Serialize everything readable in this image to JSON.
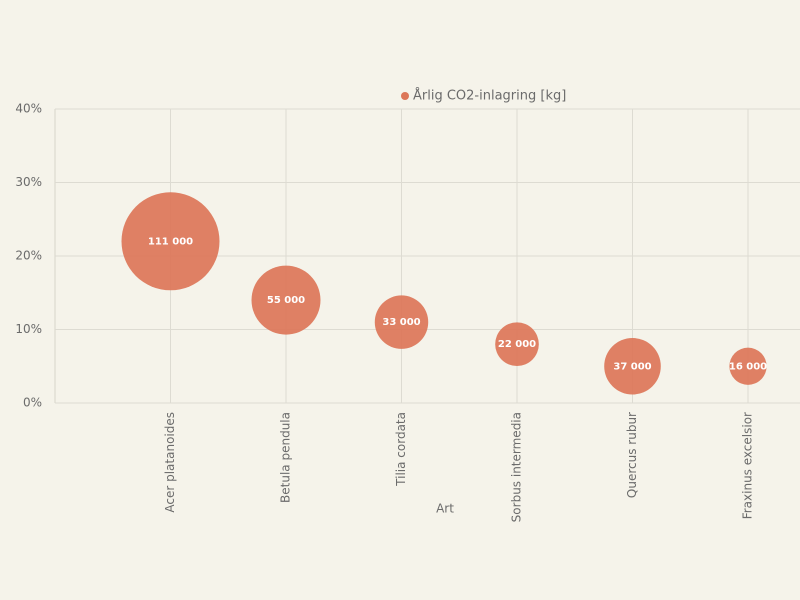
{
  "chart_data": {
    "type": "bubble",
    "x_label": "Art",
    "categories": [
      "Acer platanoides",
      "Betula pendula",
      "Tilia cordata",
      "Sorbus intermedia",
      "Quercus rubur",
      "Fraxinus excelsior"
    ],
    "series": [
      {
        "name": "Årlig CO2-inlagring [kg]",
        "color": "#dc7658",
        "values": [
          22,
          14,
          11,
          8,
          5,
          5
        ],
        "sizes": [
          111000,
          55000,
          33000,
          22000,
          37000,
          16000
        ],
        "size_labels": [
          "111 000",
          "55 000",
          "33 000",
          "22 000",
          "37 000",
          "16 000"
        ]
      }
    ],
    "ylim": [
      0,
      40
    ],
    "yticks": [
      {
        "value": 0,
        "label": "0%"
      },
      {
        "value": 10,
        "label": "10%"
      },
      {
        "value": 20,
        "label": "20%"
      },
      {
        "value": 30,
        "label": "30%"
      },
      {
        "value": 40,
        "label": "40%"
      }
    ],
    "grid": true
  }
}
